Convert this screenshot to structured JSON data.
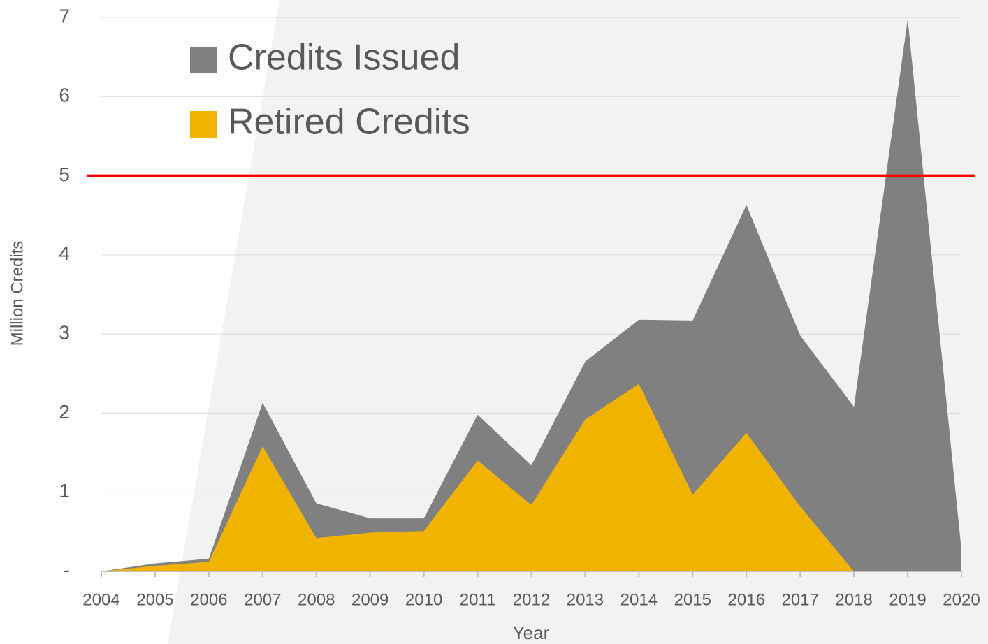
{
  "chart_data": {
    "type": "area",
    "x_label": "Year",
    "y_label": "Million Credits",
    "categories": [
      "2004",
      "2005",
      "2006",
      "2007",
      "2008",
      "2009",
      "2010",
      "2011",
      "2012",
      "2013",
      "2014",
      "2015",
      "2016",
      "2017",
      "2018",
      "2019",
      "2020"
    ],
    "series": [
      {
        "name": "Credits Issued",
        "color": "#808080",
        "values": [
          0,
          0.1,
          0.16,
          2.13,
          0.86,
          0.67,
          0.67,
          1.98,
          1.34,
          2.65,
          3.18,
          3.17,
          4.63,
          2.98,
          2.08,
          6.98,
          0.27
        ]
      },
      {
        "name": "Retired Credits",
        "color": "#f0b300",
        "values": [
          0,
          0.07,
          0.12,
          1.58,
          0.42,
          0.49,
          0.51,
          1.4,
          0.84,
          1.92,
          2.37,
          0.97,
          1.75,
          0.82,
          0,
          null,
          null
        ]
      }
    ],
    "ylim": [
      0,
      7
    ],
    "yticks": [
      {
        "value": 0,
        "label": "-"
      },
      1,
      2,
      3,
      4,
      5,
      6,
      7
    ],
    "grid": true,
    "legend": "top-left",
    "reference_line": {
      "value": 5,
      "color": "#ff0000"
    }
  }
}
